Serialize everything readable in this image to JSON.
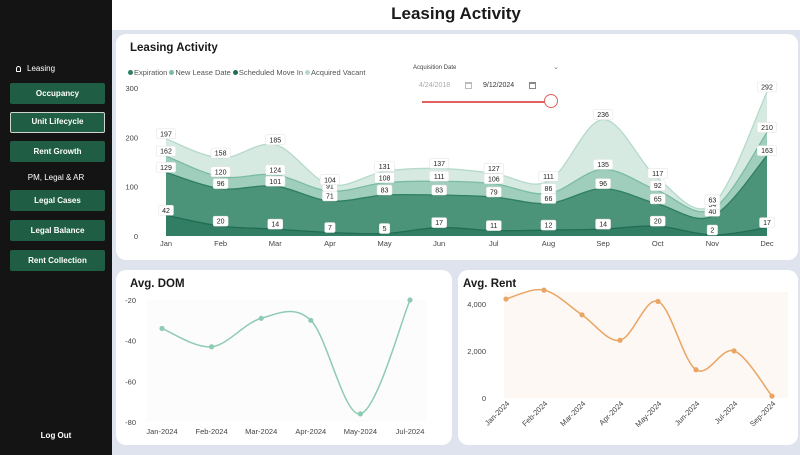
{
  "page_title": "Leasing Activity",
  "sidebar": {
    "section_leasing": "Leasing",
    "leasing_items": [
      {
        "label": "Occupancy",
        "active": false
      },
      {
        "label": "Unit Lifecycle",
        "active": true
      },
      {
        "label": "Rent Growth",
        "active": false
      }
    ],
    "section_pm": "PM, Legal & AR",
    "pm_items": [
      {
        "label": "Legal Cases"
      },
      {
        "label": "Legal Balance"
      },
      {
        "label": "Rent Collection"
      }
    ],
    "logout": "Log Out"
  },
  "leasing_card": {
    "title": "Leasing Activity",
    "acquisition_filter": {
      "label": "Acquisition Date",
      "from": "4/24/2018",
      "to": "9/12/2024",
      "slider_position": 1.0
    }
  },
  "dom_card": {
    "title": "Avg. DOM"
  },
  "rent_card": {
    "title": "Avg. Rent"
  },
  "chart_data": [
    {
      "type": "area",
      "title": "",
      "categories": [
        "Jan",
        "Feb",
        "Mar",
        "Apr",
        "May",
        "Jun",
        "Jul",
        "Aug",
        "Sep",
        "Oct",
        "Nov",
        "Dec"
      ],
      "ylim": [
        0,
        300
      ],
      "yticks": [
        "0",
        "100",
        "200",
        "300"
      ],
      "legend_position": "top-left",
      "series": [
        {
          "name": "Expiration",
          "color": "#2f7f63",
          "values": [
            129,
            96,
            101,
            71,
            83,
            83,
            79,
            66,
            96,
            65,
            40,
            163
          ]
        },
        {
          "name": "New Lease Date",
          "color": "#7bbba3",
          "values": [
            162,
            120,
            124,
            91,
            108,
            111,
            106,
            86,
            135,
            92,
            54,
            210
          ]
        },
        {
          "name": "Scheduled Move In",
          "color": "#1f6e53",
          "values": [
            42,
            20,
            14,
            7,
            5,
            17,
            11,
            12,
            14,
            20,
            2,
            17
          ]
        },
        {
          "name": "Acquired Vacant",
          "color": "#b5d9cb",
          "values": [
            197,
            158,
            185,
            104,
            131,
            137,
            127,
            111,
            236,
            117,
            63,
            292
          ]
        }
      ]
    },
    {
      "type": "line",
      "title": "Avg. DOM",
      "categories": [
        "Jan-2024",
        "Feb-2024",
        "Mar-2024",
        "Apr-2024",
        "May-2024",
        "Jul-2024"
      ],
      "ylim": [
        -80,
        -20
      ],
      "yticks": [
        "-20",
        "-40",
        "-60",
        "-80"
      ],
      "series": [
        {
          "color": "#8fcbb4",
          "values": [
            -34,
            -43,
            -29,
            -30,
            -76,
            -20
          ]
        }
      ]
    },
    {
      "type": "line",
      "title": "Avg. Rent",
      "categories": [
        "Jan-2024",
        "Feb-2024",
        "Mar-2024",
        "Apr-2024",
        "May-2024",
        "Jun-2024",
        "Jul-2024",
        "Sep-2024"
      ],
      "ylim": [
        0,
        4500
      ],
      "yticks": [
        "0",
        "2,000",
        "4,000"
      ],
      "series": [
        {
          "color": "#e9a564",
          "values": [
            4200,
            4580,
            3530,
            2450,
            4100,
            1200,
            2000,
            80
          ]
        }
      ]
    }
  ]
}
